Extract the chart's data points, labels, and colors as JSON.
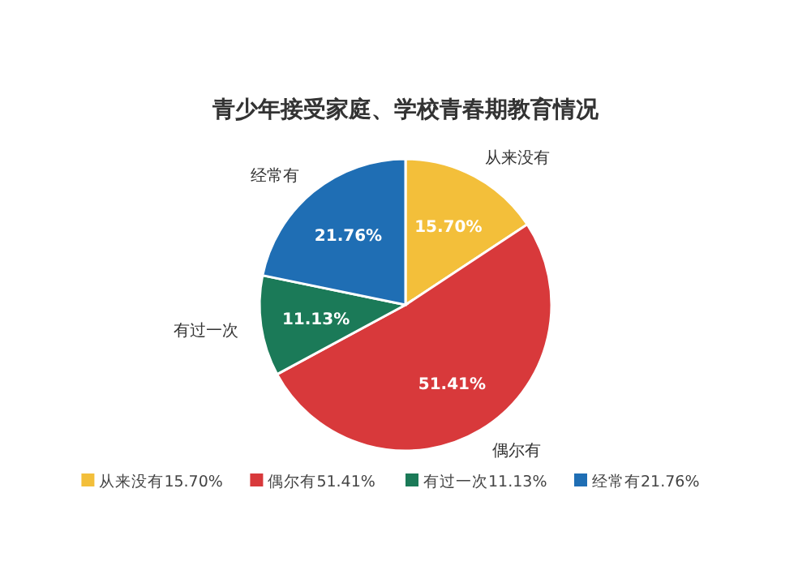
{
  "chart_data": {
    "type": "pie",
    "title": "青少年接受家庭、学校青春期教育情况",
    "categories": [
      "从来没有",
      "偶尔有",
      "有过一次",
      "经常有"
    ],
    "values": [
      15.7,
      51.41,
      11.13,
      21.76
    ],
    "colors": [
      "#f3bf3a",
      "#d8393b",
      "#1b7a58",
      "#1f6eb4"
    ],
    "value_labels": [
      "15.70%",
      "51.41%",
      "11.13%",
      "21.76%"
    ],
    "legend": "bottom"
  }
}
